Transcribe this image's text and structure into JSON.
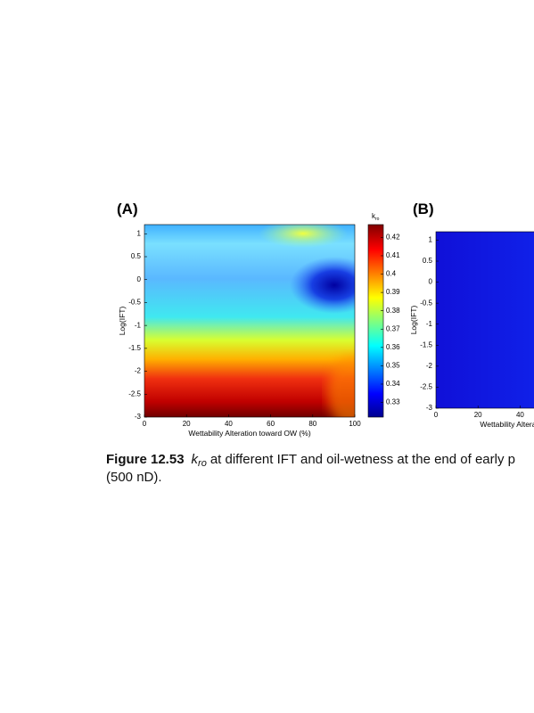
{
  "chart_data": [
    {
      "type": "contour",
      "panel_label": "(A)",
      "x_label": "Wettability Alteration toward OW (%)",
      "y_label": "Log(IFT)",
      "xlim": [
        0,
        100
      ],
      "xticks": [
        0,
        20,
        40,
        60,
        80,
        100
      ],
      "ylim": [
        -3,
        1.2
      ],
      "yticks": [
        -3,
        -2.5,
        -2,
        -1.5,
        -1,
        -0.5,
        0,
        0.5,
        1
      ],
      "colorbar_label": "k",
      "colorbar_label_sub": "ro",
      "colorbar_lim": [
        0.322,
        0.427
      ],
      "colorbar_ticks": [
        0.33,
        0.34,
        0.35,
        0.36,
        0.37,
        0.38,
        0.39,
        0.4,
        0.41,
        0.42
      ]
    },
    {
      "type": "contour",
      "panel_label": "(B)",
      "x_label": "Wettability Alteration toward OW (%)",
      "y_label": "Log(IFT)",
      "xlim": [
        0,
        100
      ],
      "xticks": [
        0,
        20,
        40
      ],
      "ylim": [
        -3,
        1.2
      ],
      "yticks": [
        -3,
        -2.5,
        -2,
        -1.5,
        -1,
        -0.5,
        0,
        0.5,
        1
      ]
    }
  ],
  "caption": {
    "label": "Figure 12.53",
    "symbol": "k",
    "symbol_sub": "ro",
    "text": "at different IFT and oil-wetness at the end of early p",
    "line2": "(500 nD)."
  }
}
